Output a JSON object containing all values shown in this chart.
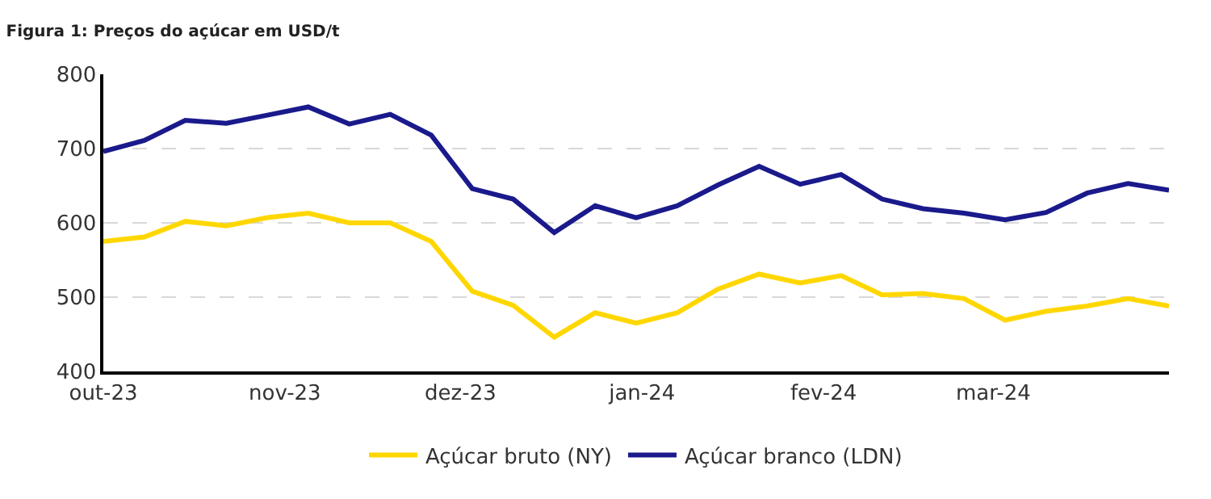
{
  "chart_data": {
    "type": "line",
    "title": "Figura 1: Preços do açúcar em USD/t",
    "x": [
      "2023-10-01",
      "2023-10-08",
      "2023-10-15",
      "2023-10-22",
      "2023-10-29",
      "2023-11-05",
      "2023-11-12",
      "2023-11-19",
      "2023-11-26",
      "2023-12-03",
      "2023-12-10",
      "2023-12-17",
      "2023-12-24",
      "2023-12-31",
      "2024-01-07",
      "2024-01-14",
      "2024-01-21",
      "2024-01-28",
      "2024-02-04",
      "2024-02-11",
      "2024-02-18",
      "2024-02-25",
      "2024-03-03",
      "2024-03-10",
      "2024-03-17",
      "2024-03-24",
      "2024-03-31"
    ],
    "series": [
      {
        "name": "Açúcar bruto (NY)",
        "color": "#ffd700",
        "values": [
          575,
          581,
          602,
          596,
          607,
          613,
          600,
          600,
          575,
          508,
          489,
          446,
          479,
          465,
          479,
          511,
          531,
          519,
          529,
          503,
          505,
          498,
          469,
          481,
          488,
          498,
          488
        ]
      },
      {
        "name": "Açúcar branco (LDN)",
        "color": "#1a1a8c",
        "values": [
          696,
          711,
          738,
          734,
          745,
          756,
          733,
          746,
          718,
          646,
          632,
          587,
          623,
          607,
          623,
          651,
          676,
          652,
          665,
          632,
          619,
          613,
          604,
          614,
          640,
          653,
          644
        ]
      }
    ],
    "xlim": [
      "2023-10-01",
      "2024-03-31"
    ],
    "xticks": [
      {
        "value": "2023-10-01",
        "label": "out-23"
      },
      {
        "value": "2023-11-01",
        "label": "nov-23"
      },
      {
        "value": "2023-12-01",
        "label": "dez-23"
      },
      {
        "value": "2024-01-01",
        "label": "jan-24"
      },
      {
        "value": "2024-02-01",
        "label": "fev-24"
      },
      {
        "value": "2024-03-01",
        "label": "mar-24"
      }
    ],
    "ylim": [
      400,
      800
    ],
    "yticks": [
      400,
      500,
      600,
      700,
      800
    ],
    "grid": "y",
    "legend": "bottom",
    "marker": "none",
    "line_style": "solid"
  }
}
